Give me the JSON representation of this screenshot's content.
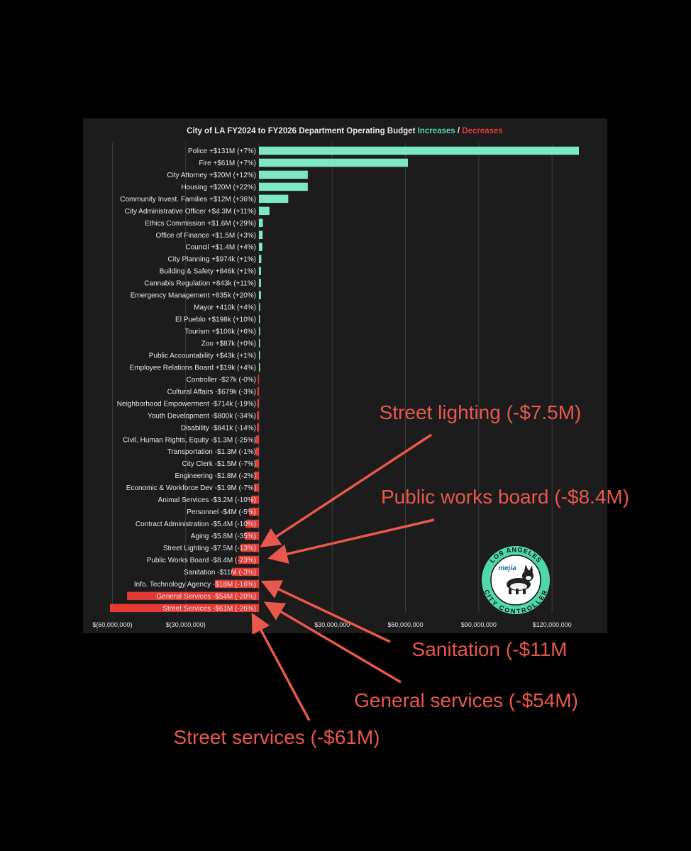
{
  "chart_data": {
    "type": "bar",
    "orientation": "horizontal",
    "title_parts": [
      {
        "text": "City of LA FY2024 to FY2026 Department Operating Budget ",
        "role": "plain"
      },
      {
        "text": "Increases",
        "role": "increase"
      },
      {
        "text": " / ",
        "role": "plain"
      },
      {
        "text": "Decreases",
        "role": "decrease"
      }
    ],
    "categories": [
      "Police +$131M (+7%)",
      "Fire +$61M (+7%)",
      "City Attorney +$20M (+12%)",
      "Housing +$20M (+22%)",
      "Community Invest. Families +$12M (+36%)",
      "City Administrative Officer +$4.3M (+11%)",
      "Ethics Commission +$1.6M (+29%)",
      "Office of Finance +$1.5M (+3%)",
      "Council +$1.4M (+4%)",
      "City Planning +$974k (+1%)",
      "Building & Safety +846k (+1%)",
      "Cannabis Regulation +843k (+11%)",
      "Emergency Management +835k (+20%)",
      "Mayor +410k (+4%)",
      "El Pueblo +$198k (+10%)",
      "Tourism +$106k (+6%)",
      "Zoo +$87k (+0%)",
      "Public Accountability +$43k (+1%)",
      "Employee Relations Board +$19k (+4%)",
      "Controller -$27k (-0%)",
      "Cultural Affairs -$679k (-3%)",
      "Neighborhood Empowerment -$714k (-19%)",
      "Youth Development -$800k (-34%)",
      "Disability -$841k (-14%)",
      "Civil, Human Rights, Equity -$1.3M (-25%)",
      "Transportation -$1.3M (-1%)",
      "City Clerk -$1.5M (-7%)",
      "Engineering -$1.8M (-2%)",
      "Economic & Workforce Dev -$1.9M (-7%)",
      "Animal Services -$3.2M (-10%)",
      "Personnel -$4M (-5%)",
      "Contract Administration -$5.4M (-10%)",
      "Aging -$5.8M (-35%)",
      "Street Lighting -$7.5M (-13%)",
      "Public Works Board -$8.4M (-23%)",
      "Sanitation -$11M (-3%)",
      "Info. Technology Agency -$18M (-16%)",
      "General Services -$54M (-20%)",
      "Street Services -$61M (-26%)"
    ],
    "values": [
      131000000,
      61000000,
      20000000,
      20000000,
      12000000,
      4300000,
      1600000,
      1500000,
      1400000,
      974000,
      846000,
      843000,
      835000,
      410000,
      198000,
      106000,
      87000,
      43000,
      19000,
      -27000,
      -679000,
      -714000,
      -800000,
      -841000,
      -1300000,
      -1300000,
      -1500000,
      -1800000,
      -1900000,
      -3200000,
      -4000000,
      -5400000,
      -5800000,
      -7500000,
      -8400000,
      -11000000,
      -18000000,
      -54000000,
      -61000000
    ],
    "xlim": [
      -60000000,
      142000000
    ],
    "x_ticks": [
      -60000000,
      -30000000,
      30000000,
      60000000,
      90000000,
      120000000
    ],
    "x_tick_labels": [
      "$(60,000,000)",
      "$(30,000,000)",
      "$30,000,000",
      "$60,000,000",
      "$90,000,000",
      "$120,000,000"
    ],
    "grid": "vertical",
    "colors": {
      "increase": "#7ee8c4",
      "decrease": "#e23a35",
      "title_increase": "#4fd8a8",
      "title_decrease": "#e23a35"
    }
  },
  "annotations": [
    {
      "text": "Street lighting (-$7.5M)",
      "target": "Street Lighting -$7.5M (-13%)"
    },
    {
      "text": "Public works board (-$8.4M)",
      "target": "Public Works Board -$8.4M (-23%)"
    },
    {
      "text": "Sanitation (-$11M",
      "target": "Info. Technology Agency -$18M (-16%)"
    },
    {
      "text": "General services  (-$54M)",
      "target": "General Services -$54M (-20%)"
    },
    {
      "text": "Street services (-$61M)",
      "target": "Street Services -$61M (-26%)"
    }
  ],
  "seal": {
    "top": "LOS ANGELES",
    "bottom": "CITY CONTROLLER",
    "name": "mejia",
    "color": "#4fd8a8"
  },
  "annotation_color": "#e8584b"
}
